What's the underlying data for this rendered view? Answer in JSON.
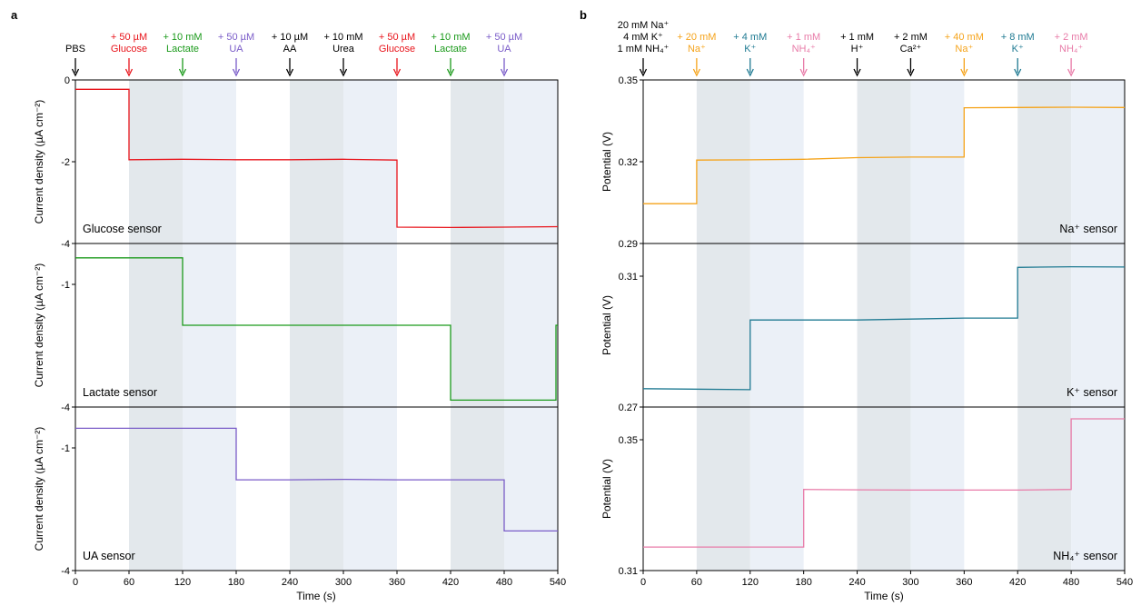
{
  "panels": [
    {
      "letter": "a",
      "xlabel": "Time (s)",
      "x_ticks": [
        "0",
        "60",
        "120",
        "180",
        "240",
        "300",
        "360",
        "420",
        "480",
        "540"
      ],
      "shading": [
        {
          "from": 60,
          "to": 120,
          "color": "#e3e8ec"
        },
        {
          "from": 120,
          "to": 180,
          "color": "#ebf0f7"
        },
        {
          "from": 240,
          "to": 300,
          "color": "#e3e8ec"
        },
        {
          "from": 300,
          "to": 360,
          "color": "#ebf0f7"
        },
        {
          "from": 420,
          "to": 480,
          "color": "#e3e8ec"
        },
        {
          "from": 480,
          "to": 540,
          "color": "#ebf0f7"
        }
      ],
      "annotations": [
        {
          "time": 0,
          "lines": [
            "PBS"
          ],
          "color": "#000000"
        },
        {
          "time": 60,
          "lines": [
            "+ 50 µM",
            "Glucose"
          ],
          "color": "#e8141b"
        },
        {
          "time": 120,
          "lines": [
            "+ 10 mM",
            "Lactate"
          ],
          "color": "#1b9a1b"
        },
        {
          "time": 180,
          "lines": [
            "+ 50 µM",
            "UA"
          ],
          "color": "#7a5cc8"
        },
        {
          "time": 240,
          "lines": [
            "+ 10 µM",
            "AA"
          ],
          "color": "#000000"
        },
        {
          "time": 300,
          "lines": [
            "+ 10 mM",
            "Urea"
          ],
          "color": "#000000"
        },
        {
          "time": 360,
          "lines": [
            "+ 50 µM",
            "Glucose"
          ],
          "color": "#e8141b"
        },
        {
          "time": 420,
          "lines": [
            "+ 10 mM",
            "Lactate"
          ],
          "color": "#1b9a1b"
        },
        {
          "time": 480,
          "lines": [
            "+ 50 µM",
            "UA"
          ],
          "color": "#7a5cc8"
        }
      ]
    },
    {
      "letter": "b",
      "xlabel": "Time (s)",
      "x_ticks": [
        "0",
        "60",
        "120",
        "180",
        "240",
        "300",
        "360",
        "420",
        "480",
        "540"
      ],
      "shading": [
        {
          "from": 60,
          "to": 120,
          "color": "#e3e8ec"
        },
        {
          "from": 120,
          "to": 180,
          "color": "#ebf0f7"
        },
        {
          "from": 240,
          "to": 300,
          "color": "#e3e8ec"
        },
        {
          "from": 300,
          "to": 360,
          "color": "#ebf0f7"
        },
        {
          "from": 420,
          "to": 480,
          "color": "#e3e8ec"
        },
        {
          "from": 480,
          "to": 540,
          "color": "#ebf0f7"
        }
      ],
      "annotations": [
        {
          "time": 0,
          "lines": [
            "20 mM Na⁺",
            "4 mM K⁺",
            "1 mM NH₄⁺"
          ],
          "color": "#000000"
        },
        {
          "time": 60,
          "lines": [
            "+ 20 mM",
            "Na⁺"
          ],
          "color": "#f5a31a"
        },
        {
          "time": 120,
          "lines": [
            "+ 4 mM",
            "K⁺"
          ],
          "color": "#1f7a92"
        },
        {
          "time": 180,
          "lines": [
            "+ 1 mM",
            "NH₄⁺"
          ],
          "color": "#e87ba8"
        },
        {
          "time": 240,
          "lines": [
            "+ 1 mM",
            "H⁺"
          ],
          "color": "#000000"
        },
        {
          "time": 300,
          "lines": [
            "+ 2 mM",
            "Ca²⁺"
          ],
          "color": "#000000"
        },
        {
          "time": 360,
          "lines": [
            "+ 40 mM",
            "Na⁺"
          ],
          "color": "#f5a31a"
        },
        {
          "time": 420,
          "lines": [
            "+ 8 mM",
            "K⁺"
          ],
          "color": "#1f7a92"
        },
        {
          "time": 480,
          "lines": [
            "+ 2 mM",
            "NH₄⁺"
          ],
          "color": "#e87ba8"
        }
      ]
    }
  ],
  "arrow_color_annotation_a": "#7a5cc8",
  "chart_data": [
    {
      "type": "line",
      "panel": "a",
      "label": "Glucose sensor",
      "ylabel": "Current density (µA cm⁻²)",
      "xlim": [
        0,
        540
      ],
      "ylim": [
        -4,
        0
      ],
      "y_ticks": [
        0,
        -2,
        -4
      ],
      "y_tick_labels": [
        "0",
        "-2",
        "-4"
      ],
      "color": "#e8141b",
      "x": [
        0,
        60,
        60,
        120,
        180,
        240,
        300,
        360,
        360,
        420,
        480,
        540
      ],
      "y": [
        -0.23,
        -0.23,
        -1.95,
        -1.94,
        -1.95,
        -1.95,
        -1.94,
        -1.96,
        -3.6,
        -3.61,
        -3.6,
        -3.59
      ]
    },
    {
      "type": "line",
      "panel": "a",
      "label": "Lactate sensor",
      "ylabel": "Current density (µA cm⁻²)",
      "ylim": [
        -4,
        0
      ],
      "y_ticks": [
        -1,
        -4
      ],
      "y_tick_labels": [
        "-1",
        "-4"
      ],
      "xlim": [
        0,
        540
      ],
      "color": "#1b9a1b",
      "x": [
        0,
        120,
        120,
        180,
        240,
        300,
        360,
        420,
        420,
        480,
        538,
        538,
        540
      ],
      "y": [
        -0.35,
        -0.35,
        -2.0,
        -2.0,
        -2.0,
        -2.0,
        -2.0,
        -2.0,
        -3.83,
        -3.83,
        -3.83,
        -2.0,
        -2.0
      ]
    },
    {
      "type": "line",
      "panel": "a",
      "label": "UA sensor",
      "ylabel": "Current density (µA cm⁻²)",
      "ylim": [
        -4,
        0
      ],
      "y_ticks": [
        -1,
        -4
      ],
      "y_tick_labels": [
        "-1",
        "-4"
      ],
      "xlim": [
        0,
        540
      ],
      "color": "#7a5cc8",
      "x": [
        0,
        180,
        180,
        240,
        300,
        360,
        420,
        480,
        480,
        540
      ],
      "y": [
        -0.52,
        -0.52,
        -1.78,
        -1.78,
        -1.77,
        -1.78,
        -1.78,
        -1.78,
        -3.03,
        -3.03
      ]
    },
    {
      "type": "line",
      "panel": "b",
      "label": "Na⁺ sensor",
      "ylabel": "Potential (V)",
      "ylim": [
        0.29,
        0.35
      ],
      "y_ticks": [
        0.29,
        0.32,
        0.35
      ],
      "y_tick_labels": [
        "0.29",
        "0.32",
        "0.35"
      ],
      "xlim": [
        0,
        540
      ],
      "color": "#f5a31a",
      "x": [
        0,
        60,
        60,
        120,
        180,
        240,
        300,
        360,
        360,
        420,
        480,
        540
      ],
      "y": [
        0.3046,
        0.3046,
        0.3206,
        0.3207,
        0.3209,
        0.3215,
        0.3217,
        0.3217,
        0.3398,
        0.3399,
        0.34,
        0.3399
      ]
    },
    {
      "type": "line",
      "panel": "b",
      "label": "K⁺ sensor",
      "ylabel": "Potential (V)",
      "ylim": [
        0.27,
        0.32
      ],
      "y_ticks": [
        0.27,
        0.31
      ],
      "y_tick_labels": [
        "0.27",
        "0.31"
      ],
      "xlim": [
        0,
        540
      ],
      "color": "#1f7a92",
      "x": [
        0,
        120,
        120,
        180,
        240,
        300,
        360,
        420,
        420,
        480,
        540
      ],
      "y": [
        0.2756,
        0.2753,
        0.2966,
        0.2966,
        0.2966,
        0.2969,
        0.2972,
        0.2972,
        0.3127,
        0.3129,
        0.3128
      ]
    },
    {
      "type": "line",
      "panel": "b",
      "label": "NH₄⁺ sensor",
      "ylabel": "Potential (V)",
      "ylim": [
        0.31,
        0.36
      ],
      "y_ticks": [
        0.31,
        0.35
      ],
      "y_tick_labels": [
        "0.31",
        "0.35"
      ],
      "xlim": [
        0,
        540
      ],
      "color": "#e87ba8",
      "x": [
        0,
        180,
        180,
        240,
        300,
        360,
        420,
        480,
        480,
        540
      ],
      "y": [
        0.3172,
        0.3172,
        0.3348,
        0.3347,
        0.3346,
        0.3346,
        0.3346,
        0.3348,
        0.3564,
        0.3564
      ]
    }
  ]
}
